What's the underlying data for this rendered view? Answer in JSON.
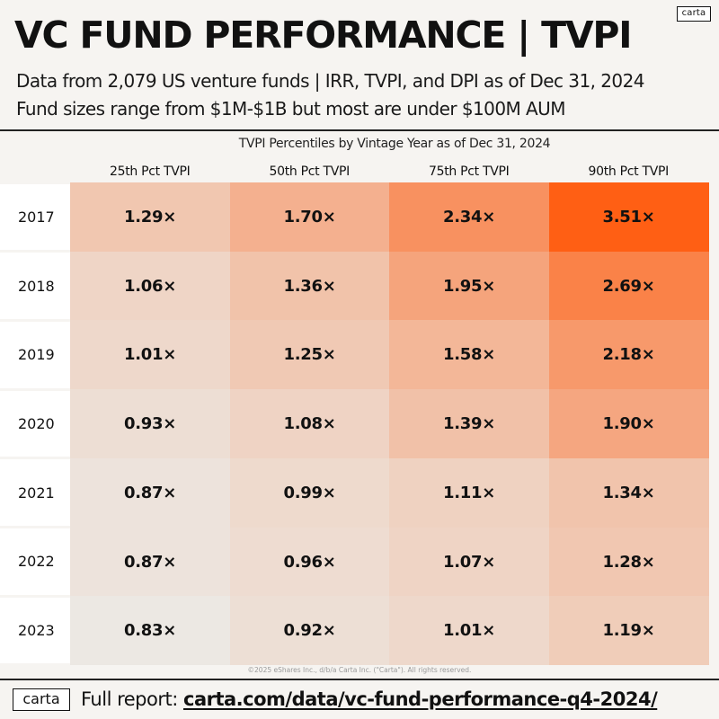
{
  "brand": {
    "logo_top": "carta",
    "logo_bottom": "carta"
  },
  "header": {
    "title": "VC FUND PERFORMANCE | TVPI",
    "subtitle_1": "Data from 2,079 US venture funds | IRR, TVPI, and DPI as of Dec 31, 2024",
    "subtitle_2": "Fund sizes range from $1M-$1B but most are under $100M AUM"
  },
  "footer": {
    "copyright": "©2025 eShares Inc., d/b/a Carta Inc. (\"Carta\"). All rights reserved.",
    "report_label": "Full report:",
    "report_url": "carta.com/data/vc-fund-performance-q4-2024/"
  },
  "colors": {
    "low": "#ece8e3",
    "high": "#ff5f14",
    "label_bg": "#ffffff"
  },
  "chart_data": {
    "type": "heatmap",
    "title": "TVPI Percentiles by Vintage Year as of Dec 31, 2024",
    "columns": [
      "25th Pct TVPI",
      "50th Pct TVPI",
      "75th Pct TVPI",
      "90th Pct TVPI"
    ],
    "rows": [
      "2017",
      "2018",
      "2019",
      "2020",
      "2021",
      "2022",
      "2023"
    ],
    "value_suffix": "×",
    "values": [
      [
        1.29,
        1.7,
        2.34,
        3.51
      ],
      [
        1.06,
        1.36,
        1.95,
        2.69
      ],
      [
        1.01,
        1.25,
        1.58,
        2.18
      ],
      [
        0.93,
        1.08,
        1.39,
        1.9
      ],
      [
        0.87,
        0.99,
        1.11,
        1.34
      ],
      [
        0.87,
        0.96,
        1.07,
        1.28
      ],
      [
        0.83,
        0.92,
        1.01,
        1.19
      ]
    ]
  }
}
